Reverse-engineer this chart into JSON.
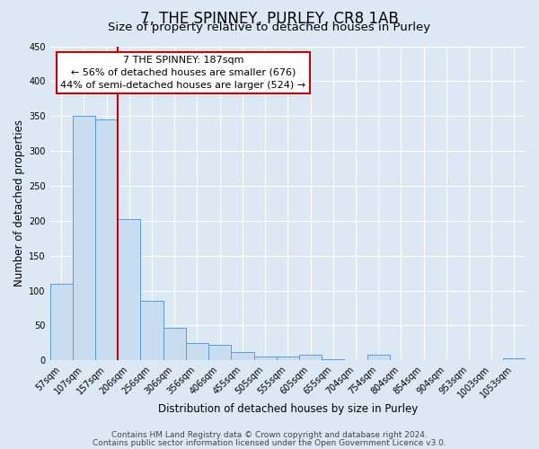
{
  "title": "7, THE SPINNEY, PURLEY, CR8 1AB",
  "subtitle": "Size of property relative to detached houses in Purley",
  "xlabel": "Distribution of detached houses by size in Purley",
  "ylabel": "Number of detached properties",
  "bin_labels": [
    "57sqm",
    "107sqm",
    "157sqm",
    "206sqm",
    "256sqm",
    "306sqm",
    "356sqm",
    "406sqm",
    "455sqm",
    "505sqm",
    "555sqm",
    "605sqm",
    "655sqm",
    "704sqm",
    "754sqm",
    "804sqm",
    "854sqm",
    "904sqm",
    "953sqm",
    "1003sqm",
    "1053sqm"
  ],
  "bar_heights": [
    110,
    350,
    345,
    203,
    85,
    47,
    25,
    22,
    12,
    5,
    5,
    8,
    2,
    0,
    8,
    0,
    0,
    0,
    0,
    0,
    3
  ],
  "bar_color": "#c9ddf0",
  "bar_edge_color": "#5b9bd5",
  "vline_color": "#cc0000",
  "vline_x_idx": 2.5,
  "annotation_title": "7 THE SPINNEY: 187sqm",
  "annotation_line1": "← 56% of detached houses are smaller (676)",
  "annotation_line2": "44% of semi-detached houses are larger (524) →",
  "annotation_box_color": "#ffffff",
  "annotation_box_edge": "#cc0000",
  "ylim": [
    0,
    450
  ],
  "yticks": [
    0,
    50,
    100,
    150,
    200,
    250,
    300,
    350,
    400,
    450
  ],
  "footer1": "Contains HM Land Registry data © Crown copyright and database right 2024.",
  "footer2": "Contains public sector information licensed under the Open Government Licence v3.0.",
  "background_color": "#dce9f5",
  "plot_bg_color": "#dce9f5",
  "grid_color": "#ffffff",
  "title_fontsize": 12,
  "subtitle_fontsize": 9.5,
  "axis_label_fontsize": 8.5,
  "tick_fontsize": 7,
  "footer_fontsize": 6.5
}
